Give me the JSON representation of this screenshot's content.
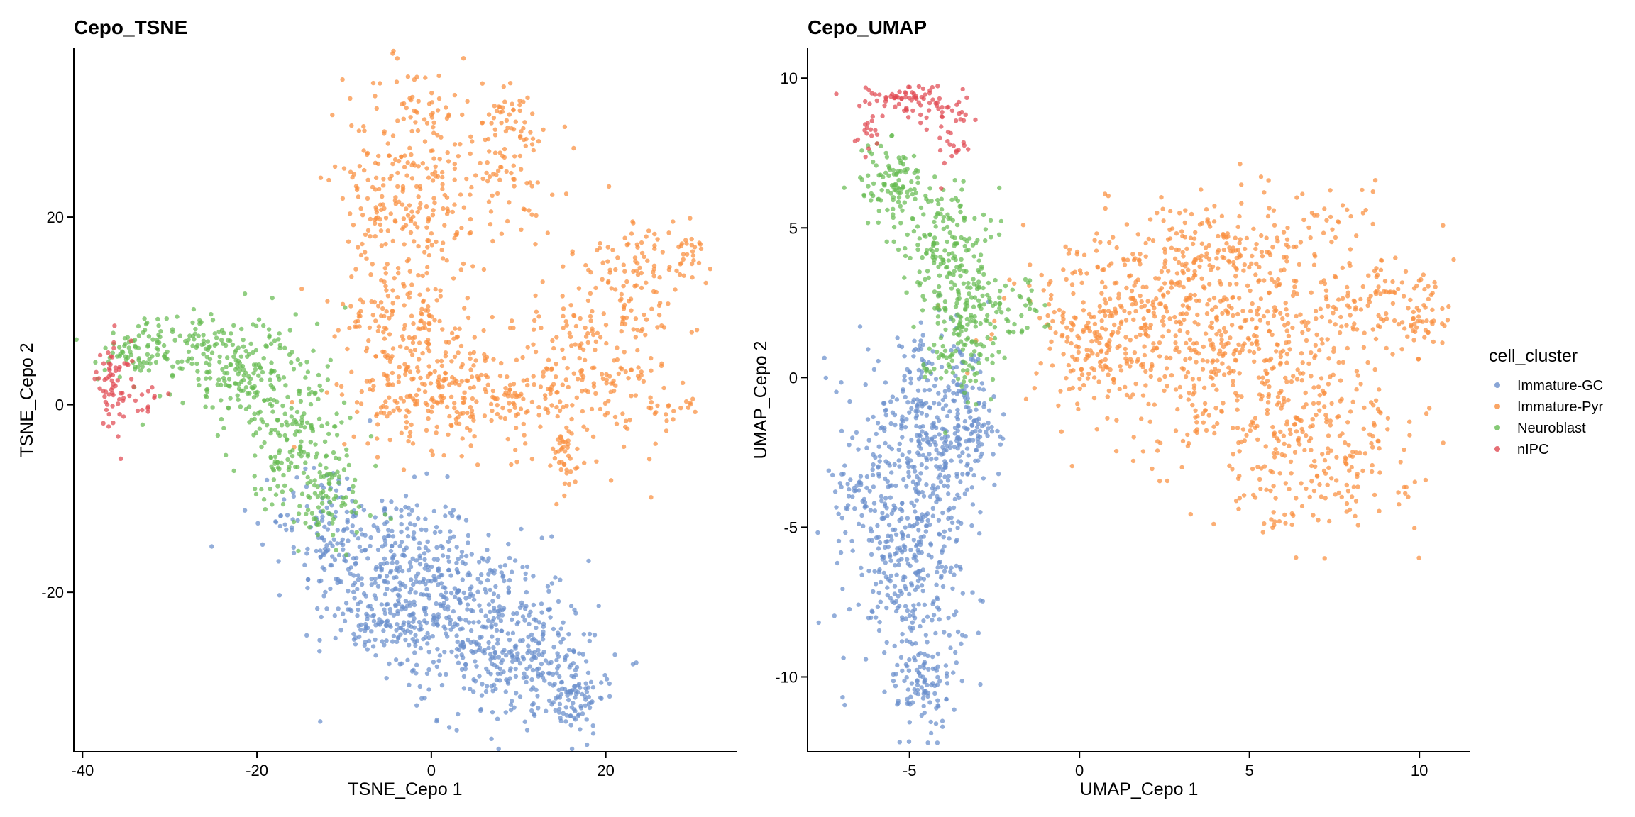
{
  "chart_data": [
    {
      "type": "scatter",
      "title": "Cepo_TSNE",
      "xlabel": "TSNE_Cepo 1",
      "ylabel": "TSNE_Cepo 2",
      "xlim": [
        -41,
        35
      ],
      "ylim": [
        -37,
        38
      ],
      "xticks": [
        -40,
        -20,
        0,
        20
      ],
      "xtick_labels": [
        "-40",
        "-20",
        "0",
        "20"
      ],
      "yticks": [
        -20,
        0,
        20
      ],
      "ytick_labels": [
        "-20",
        "0",
        "20"
      ],
      "series": [
        {
          "name": "Immature-GC",
          "clusters": [
            {
              "x": -5,
              "y": -17,
              "sx": 5,
              "sy": 4,
              "n": 260
            },
            {
              "x": 3,
              "y": -22,
              "sx": 5,
              "sy": 4,
              "n": 300
            },
            {
              "x": 10,
              "y": -27,
              "sx": 4.5,
              "sy": 3.5,
              "n": 240
            },
            {
              "x": 16,
              "y": -31,
              "sx": 2,
              "sy": 2,
              "n": 90
            },
            {
              "x": -12,
              "y": -12,
              "sx": 3,
              "sy": 3,
              "n": 90
            },
            {
              "x": -6,
              "y": -24,
              "sx": 3,
              "sy": 2,
              "n": 60
            }
          ]
        },
        {
          "name": "Immature-Pyr",
          "clusters": [
            {
              "x": -2,
              "y": 25,
              "sx": 4,
              "sy": 6,
              "n": 230
            },
            {
              "x": -3,
              "y": 8,
              "sx": 4,
              "sy": 5,
              "n": 200
            },
            {
              "x": 5,
              "y": 1,
              "sx": 7,
              "sy": 3,
              "n": 280
            },
            {
              "x": 20,
              "y": 6,
              "sx": 4,
              "sy": 6,
              "n": 200
            },
            {
              "x": 25,
              "y": 16,
              "sx": 3,
              "sy": 2,
              "n": 60
            },
            {
              "x": 8,
              "y": 25,
              "sx": 3,
              "sy": 4,
              "n": 80
            },
            {
              "x": 15,
              "y": -6,
              "sx": 1.2,
              "sy": 2,
              "n": 30
            },
            {
              "x": 28,
              "y": 0,
              "sx": 1.5,
              "sy": 1,
              "n": 15
            },
            {
              "x": 30,
              "y": 16,
              "sx": 0.7,
              "sy": 1,
              "n": 15
            },
            {
              "x": 10,
              "y": 31,
              "sx": 1.5,
              "sy": 1.5,
              "n": 30
            },
            {
              "x": -6,
              "y": 21,
              "sx": 0.8,
              "sy": 2,
              "n": 20
            }
          ]
        },
        {
          "name": "Neuroblast",
          "clusters": [
            {
              "x": -28,
              "y": 6,
              "sx": 5,
              "sy": 2,
              "n": 120
            },
            {
              "x": -21,
              "y": 3,
              "sx": 4,
              "sy": 3,
              "n": 160
            },
            {
              "x": -16,
              "y": -4,
              "sx": 3,
              "sy": 3.5,
              "n": 140
            },
            {
              "x": -12,
              "y": -10,
              "sx": 3,
              "sy": 3,
              "n": 80
            },
            {
              "x": -33,
              "y": 6,
              "sx": 2,
              "sy": 1.5,
              "n": 40
            }
          ]
        },
        {
          "name": "nIPC",
          "clusters": [
            {
              "x": -36.5,
              "y": 2,
              "sx": 1,
              "sy": 2.5,
              "n": 60
            },
            {
              "x": -33,
              "y": 1,
              "sx": 1.2,
              "sy": 0.8,
              "n": 15
            }
          ]
        }
      ]
    },
    {
      "type": "scatter",
      "title": "Cepo_UMAP",
      "xlabel": "UMAP_Cepo 1",
      "ylabel": "UMAP_Cepo 2",
      "xlim": [
        -8,
        11.5
      ],
      "ylim": [
        -12.5,
        11
      ],
      "xticks": [
        -5,
        0,
        5,
        10
      ],
      "xtick_labels": [
        "-5",
        "0",
        "5",
        "10"
      ],
      "yticks": [
        -10,
        -5,
        0,
        5,
        10
      ],
      "ytick_labels": [
        "-10",
        "-5",
        "0",
        "5",
        "10"
      ],
      "series": [
        {
          "name": "Immature-GC",
          "clusters": [
            {
              "x": -4.5,
              "y": -2,
              "sx": 1,
              "sy": 1.6,
              "n": 380
            },
            {
              "x": -5,
              "y": -6.5,
              "sx": 0.8,
              "sy": 1.8,
              "n": 300
            },
            {
              "x": -4.5,
              "y": -10.3,
              "sx": 0.4,
              "sy": 0.7,
              "n": 80
            },
            {
              "x": -3,
              "y": -1.5,
              "sx": 0.4,
              "sy": 1.2,
              "n": 60
            },
            {
              "x": -6.5,
              "y": -4,
              "sx": 0.4,
              "sy": 0.8,
              "n": 50
            }
          ]
        },
        {
          "name": "Immature-Pyr",
          "clusters": [
            {
              "x": 2,
              "y": 2,
              "sx": 2,
              "sy": 1.5,
              "n": 350
            },
            {
              "x": 5,
              "y": 1,
              "sx": 2,
              "sy": 2,
              "n": 400
            },
            {
              "x": 7,
              "y": -2.5,
              "sx": 1.5,
              "sy": 1.3,
              "n": 200
            },
            {
              "x": 4,
              "y": 4.5,
              "sx": 1,
              "sy": 0.8,
              "n": 100
            },
            {
              "x": 9,
              "y": 2.5,
              "sx": 1,
              "sy": 1,
              "n": 100
            },
            {
              "x": 10.2,
              "y": 2,
              "sx": 0.3,
              "sy": 0.7,
              "n": 25
            },
            {
              "x": 7.5,
              "y": 5.5,
              "sx": 0.6,
              "sy": 0.5,
              "n": 25
            },
            {
              "x": 6,
              "y": -4.8,
              "sx": 0.3,
              "sy": 0.2,
              "n": 10
            },
            {
              "x": 0.5,
              "y": 1,
              "sx": 0.6,
              "sy": 1,
              "n": 80
            }
          ]
        },
        {
          "name": "Neuroblast",
          "clusters": [
            {
              "x": -5.5,
              "y": 6.5,
              "sx": 0.5,
              "sy": 0.7,
              "n": 100
            },
            {
              "x": -4,
              "y": 4.5,
              "sx": 0.6,
              "sy": 1,
              "n": 150
            },
            {
              "x": -3.5,
              "y": 1.8,
              "sx": 0.6,
              "sy": 1.2,
              "n": 160
            },
            {
              "x": -2.3,
              "y": 2.5,
              "sx": 0.6,
              "sy": 0.6,
              "n": 50
            }
          ]
        },
        {
          "name": "nIPC",
          "clusters": [
            {
              "x": -5,
              "y": 9.2,
              "sx": 0.9,
              "sy": 0.35,
              "n": 80
            },
            {
              "x": -3.8,
              "y": 8,
              "sx": 0.25,
              "sy": 0.6,
              "n": 25
            },
            {
              "x": -6.2,
              "y": 8.2,
              "sx": 0.2,
              "sy": 0.3,
              "n": 15
            }
          ]
        }
      ]
    }
  ],
  "legend": {
    "title": "cell_cluster",
    "entries": [
      {
        "label": "Immature-GC",
        "color": "#6A8FCC"
      },
      {
        "label": "Immature-Pyr",
        "color": "#F98F3F"
      },
      {
        "label": "Neuroblast",
        "color": "#66BB52"
      },
      {
        "label": "nIPC",
        "color": "#E04A52"
      }
    ]
  }
}
